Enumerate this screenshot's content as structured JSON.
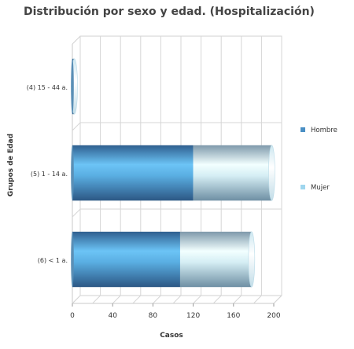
{
  "chart_data": {
    "type": "bar",
    "orientation": "horizontal",
    "title": "Distribución por sexo y edad. (Hospitalización)",
    "xlabel": "Casos",
    "ylabel": "Grupos de Edad",
    "categories": [
      "(4) 15 - 44 a.",
      "(5) 1 - 14 a.",
      "(6) < 1 a."
    ],
    "series": [
      {
        "name": "Hombre",
        "values": [
          1,
          120,
          107
        ],
        "color": "#4a8fc4"
      },
      {
        "name": "Mujer",
        "values": [
          1,
          78,
          71
        ],
        "color": "#9fd6ee"
      }
    ],
    "stacked": true,
    "xlim": [
      0,
      200
    ],
    "xticks": [
      0,
      40,
      80,
      120,
      160,
      200
    ],
    "grid": true,
    "legend_position": "right"
  }
}
